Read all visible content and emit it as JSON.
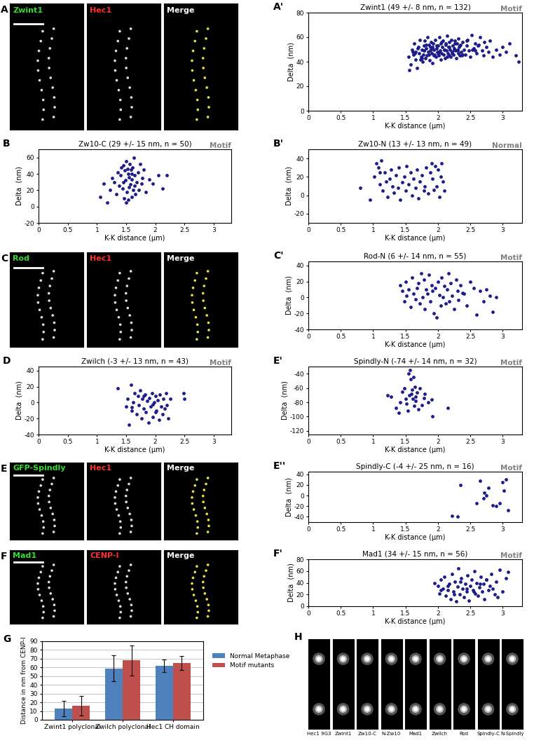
{
  "chart_data": [
    {
      "type": "scatter",
      "panel": "A'",
      "title": "Zwint1 (49 +/- 8 nm, n = 132)",
      "annotation": "Motif",
      "x_label": "K-K distance (µm)",
      "y_label": "Delta  (nm)",
      "color": "#1c1c8c",
      "marker": "o",
      "xlim": [
        0,
        3.3
      ],
      "xticks": [
        0,
        0.5,
        1,
        1.5,
        2,
        2.5,
        3
      ],
      "ylim": [
        0,
        80
      ],
      "yticks": [
        0,
        20,
        40,
        60,
        80
      ],
      "x": [
        1.55,
        1.58,
        1.6,
        1.62,
        1.63,
        1.65,
        1.66,
        1.68,
        1.7,
        1.71,
        1.72,
        1.74,
        1.75,
        1.76,
        1.77,
        1.78,
        1.79,
        1.8,
        1.81,
        1.82,
        1.83,
        1.84,
        1.85,
        1.86,
        1.87,
        1.88,
        1.89,
        1.9,
        1.91,
        1.92,
        1.93,
        1.94,
        1.95,
        1.96,
        1.97,
        1.98,
        1.99,
        2.0,
        2.01,
        2.02,
        2.03,
        2.04,
        2.05,
        2.06,
        2.07,
        2.08,
        2.09,
        2.1,
        2.11,
        2.12,
        2.13,
        2.14,
        2.15,
        2.16,
        2.17,
        2.18,
        2.19,
        2.2,
        2.21,
        2.22,
        2.23,
        2.24,
        2.25,
        2.26,
        2.27,
        2.28,
        2.29,
        2.3,
        2.31,
        2.32,
        2.33,
        2.34,
        2.35,
        2.36,
        2.38,
        2.4,
        2.42,
        2.44,
        2.46,
        2.48,
        2.5,
        2.52,
        2.55,
        2.58,
        2.6,
        2.62,
        2.65,
        2.68,
        2.7,
        2.72,
        2.75,
        2.78,
        2.8,
        2.85,
        2.9,
        2.95,
        3.0,
        3.05,
        3.1,
        3.2,
        3.25,
        1.56,
        1.64,
        1.69,
        1.73,
        1.78,
        1.82,
        1.86,
        1.9,
        1.94,
        1.98,
        2.02,
        2.06,
        2.1,
        2.14,
        2.18,
        2.22,
        2.26,
        2.3,
        2.34,
        2.38,
        2.45,
        2.53,
        2.63,
        1.61,
        1.75,
        1.88,
        2.0,
        2.12,
        2.25,
        2.37,
        2.57
      ],
      "values": [
        44,
        38,
        50,
        46,
        55,
        42,
        48,
        35,
        52,
        47,
        58,
        44,
        50,
        40,
        46,
        53,
        49,
        57,
        43,
        51,
        45,
        60,
        48,
        54,
        41,
        49,
        56,
        47,
        52,
        39,
        55,
        50,
        46,
        58,
        44,
        51,
        48,
        53,
        45,
        60,
        49,
        42,
        55,
        47,
        52,
        57,
        46,
        50,
        43,
        54,
        49,
        61,
        47,
        52,
        45,
        56,
        50,
        44,
        58,
        48,
        53,
        46,
        51,
        57,
        49,
        43,
        55,
        50,
        47,
        59,
        52,
        45,
        54,
        48,
        56,
        50,
        46,
        53,
        58,
        49,
        44,
        62,
        51,
        55,
        47,
        53,
        60,
        49,
        45,
        56,
        52,
        48,
        57,
        44,
        50,
        46,
        52,
        48,
        55,
        45,
        40,
        33,
        47,
        51,
        42,
        49,
        54,
        46,
        51,
        45,
        53,
        48,
        56,
        50,
        44,
        52,
        47,
        55,
        49,
        53,
        46,
        57,
        50,
        54,
        48,
        43,
        52,
        47,
        55,
        50,
        45,
        49
      ]
    },
    {
      "type": "scatter",
      "panel": "B",
      "title": "Zw10-C (29 +/- 15 nm, n = 50)",
      "annotation": "Motif",
      "x_label": "K-K distance (µm)",
      "y_label": "Delta  (nm)",
      "color": "#1c1c8c",
      "marker": "o",
      "xlim": [
        0,
        3.3
      ],
      "xticks": [
        0,
        0.5,
        1,
        1.5,
        2,
        2.5,
        3
      ],
      "ylim": [
        -20,
        70
      ],
      "yticks": [
        -20,
        0,
        20,
        40,
        60
      ],
      "x": [
        1.05,
        1.12,
        1.18,
        1.22,
        1.26,
        1.3,
        1.33,
        1.35,
        1.38,
        1.4,
        1.42,
        1.44,
        1.45,
        1.46,
        1.48,
        1.49,
        1.5,
        1.51,
        1.52,
        1.53,
        1.54,
        1.55,
        1.56,
        1.57,
        1.58,
        1.59,
        1.6,
        1.61,
        1.62,
        1.63,
        1.64,
        1.65,
        1.66,
        1.68,
        1.7,
        1.72,
        1.74,
        1.76,
        1.78,
        1.8,
        1.45,
        1.5,
        1.55,
        1.6,
        1.84,
        1.9,
        1.95,
        2.05,
        2.12,
        2.2
      ],
      "values": [
        12,
        28,
        5,
        20,
        35,
        30,
        15,
        42,
        25,
        38,
        48,
        22,
        50,
        10,
        44,
        32,
        55,
        18,
        46,
        40,
        8,
        36,
        52,
        27,
        45,
        12,
        33,
        48,
        20,
        60,
        38,
        25,
        15,
        30,
        42,
        20,
        52,
        28,
        35,
        45,
        30,
        5,
        24,
        40,
        18,
        33,
        28,
        38,
        22,
        38
      ]
    },
    {
      "type": "scatter",
      "panel": "B'",
      "title": "Zw10-N (13 +/- 13 nm, n = 49)",
      "annotation": "Normal",
      "x_label": "K-K distance (µm)",
      "y_label": "Delta  (nm)",
      "color": "#1c1c8c",
      "marker": "o",
      "xlim": [
        0,
        3.3
      ],
      "xticks": [
        0,
        0.5,
        1,
        1.5,
        2,
        2.5,
        3
      ],
      "ylim": [
        -30,
        50
      ],
      "yticks": [
        -20,
        0,
        20,
        40
      ],
      "x": [
        0.8,
        0.95,
        1.02,
        1.05,
        1.08,
        1.1,
        1.12,
        1.15,
        1.18,
        1.2,
        1.22,
        1.25,
        1.28,
        1.3,
        1.32,
        1.35,
        1.38,
        1.4,
        1.42,
        1.45,
        1.48,
        1.5,
        1.52,
        1.55,
        1.58,
        1.6,
        1.62,
        1.65,
        1.68,
        1.7,
        1.72,
        1.75,
        1.78,
        1.8,
        1.82,
        1.85,
        1.88,
        1.9,
        1.92,
        1.94,
        1.96,
        1.98,
        2.0,
        2.02,
        2.04,
        2.06,
        2.08,
        2.1,
        1.1
      ],
      "values": [
        8,
        -5,
        20,
        35,
        30,
        12,
        38,
        5,
        25,
        15,
        -2,
        18,
        28,
        10,
        3,
        22,
        8,
        30,
        -5,
        14,
        20,
        5,
        32,
        12,
        25,
        0,
        18,
        8,
        28,
        -3,
        15,
        22,
        5,
        10,
        30,
        2,
        25,
        35,
        18,
        6,
        32,
        10,
        28,
        -2,
        20,
        35,
        15,
        5,
        25
      ]
    },
    {
      "type": "scatter",
      "panel": "C'",
      "title": "Rod-N (6 +/- 14 nm, n = 55)",
      "annotation": "Motif",
      "x_label": "K-K distance (µm)",
      "y_label": "Delta  (nm)",
      "color": "#1c1c8c",
      "marker": "o",
      "xlim": [
        0,
        3.3
      ],
      "xticks": [
        0,
        0.5,
        1,
        1.5,
        2,
        2.5,
        3
      ],
      "ylim": [
        -40,
        45
      ],
      "yticks": [
        -40,
        -20,
        0,
        20,
        40
      ],
      "x": [
        1.42,
        1.45,
        1.48,
        1.5,
        1.52,
        1.55,
        1.58,
        1.6,
        1.62,
        1.65,
        1.68,
        1.7,
        1.72,
        1.74,
        1.76,
        1.78,
        1.8,
        1.82,
        1.84,
        1.86,
        1.88,
        1.9,
        1.92,
        1.94,
        1.96,
        1.98,
        2.0,
        2.02,
        2.04,
        2.06,
        2.08,
        2.1,
        2.12,
        2.14,
        2.16,
        2.18,
        2.2,
        2.22,
        2.25,
        2.28,
        2.3,
        2.32,
        2.35,
        2.38,
        2.4,
        2.45,
        2.5,
        2.55,
        2.6,
        2.65,
        2.7,
        2.75,
        2.8,
        2.85,
        2.9
      ],
      "values": [
        15,
        8,
        -5,
        20,
        2,
        10,
        -12,
        25,
        5,
        -2,
        12,
        18,
        -8,
        30,
        0,
        22,
        -15,
        10,
        5,
        28,
        -5,
        15,
        8,
        -20,
        12,
        -25,
        20,
        3,
        -10,
        25,
        0,
        14,
        -8,
        10,
        30,
        -5,
        18,
        2,
        -15,
        22,
        8,
        -3,
        15,
        6,
        5,
        -10,
        20,
        12,
        -22,
        8,
        -5,
        10,
        2,
        -18,
        0
      ]
    },
    {
      "type": "scatter",
      "panel": "D",
      "title": "Zwilch (-3 +/- 13 nm, n = 43)",
      "annotation": "Motif",
      "x_label": "K-K distance (µm)",
      "y_label": "Delta  (nm)",
      "color": "#1c1c8c",
      "marker": "o",
      "xlim": [
        0,
        3.3
      ],
      "xticks": [
        0,
        0.5,
        1,
        1.5,
        2,
        2.5,
        3
      ],
      "ylim": [
        -40,
        45
      ],
      "yticks": [
        -40,
        -20,
        0,
        20,
        40
      ],
      "x": [
        1.35,
        1.5,
        1.52,
        1.55,
        1.58,
        1.6,
        1.62,
        1.65,
        1.68,
        1.7,
        1.72,
        1.74,
        1.76,
        1.78,
        1.8,
        1.82,
        1.84,
        1.86,
        1.88,
        1.9,
        1.92,
        1.94,
        1.96,
        1.98,
        2.0,
        2.02,
        2.04,
        2.06,
        2.08,
        2.1,
        2.12,
        2.14,
        2.16,
        2.18,
        2.2,
        2.22,
        2.25,
        2.0,
        1.8,
        1.6,
        2.48,
        2.5,
        1.95
      ],
      "values": [
        18,
        -5,
        5,
        -28,
        22,
        -10,
        0,
        12,
        -15,
        8,
        -3,
        15,
        -20,
        5,
        -8,
        10,
        -12,
        2,
        -25,
        6,
        -5,
        12,
        -18,
        0,
        8,
        -10,
        3,
        -22,
        10,
        -5,
        -15,
        5,
        -8,
        12,
        -3,
        -20,
        5,
        -12,
        8,
        -6,
        12,
        5,
        -2
      ]
    },
    {
      "type": "scatter",
      "panel": "E'",
      "title": "Spindly-N (-74 +/- 14 nm, n = 32)",
      "annotation": "Motif",
      "x_label": "K-K distance (µm)",
      "y_label": "Delta  (nm)",
      "color": "#1c1c8c",
      "marker": "o",
      "xlim": [
        0,
        3.3
      ],
      "xticks": [
        0,
        0.5,
        1,
        1.5,
        2,
        2.5,
        3
      ],
      "ylim": [
        -125,
        -30
      ],
      "yticks": [
        -120,
        -100,
        -80,
        -60,
        -40
      ],
      "x": [
        1.22,
        1.28,
        1.35,
        1.4,
        1.42,
        1.45,
        1.48,
        1.5,
        1.52,
        1.54,
        1.55,
        1.56,
        1.57,
        1.58,
        1.59,
        1.6,
        1.61,
        1.62,
        1.63,
        1.64,
        1.65,
        1.66,
        1.68,
        1.7,
        1.72,
        1.75,
        1.78,
        1.8,
        1.85,
        1.9,
        1.92,
        2.15
      ],
      "values": [
        -70,
        -72,
        -88,
        -95,
        -80,
        -65,
        -60,
        -75,
        -82,
        -92,
        -40,
        -70,
        -35,
        -48,
        -68,
        -62,
        -75,
        -45,
        -85,
        -58,
        -72,
        -78,
        -66,
        -90,
        -60,
        -84,
        -74,
        -68,
        -80,
        -76,
        -100,
        -88
      ]
    },
    {
      "type": "scatter",
      "panel": "E''",
      "title": "Spindly-C (-4 +/- 25 nm, n = 16)",
      "annotation": "Motif",
      "x_label": "K-K distance (µm)",
      "y_label": "Delta  (nm)",
      "color": "#1c1c8c",
      "marker": "o",
      "xlim": [
        0,
        3.3
      ],
      "xticks": [
        0,
        0.5,
        1,
        1.5,
        2,
        2.5,
        3
      ],
      "ylim": [
        -50,
        45
      ],
      "yticks": [
        -40,
        -20,
        0,
        20,
        40
      ],
      "x": [
        2.22,
        2.3,
        2.35,
        2.6,
        2.65,
        2.7,
        2.72,
        2.75,
        2.78,
        2.85,
        2.9,
        2.95,
        3.0,
        3.02,
        3.05,
        3.08
      ],
      "values": [
        -38,
        -40,
        20,
        -15,
        28,
        -5,
        5,
        0,
        15,
        -18,
        -20,
        -15,
        25,
        10,
        30,
        -28
      ]
    },
    {
      "type": "scatter",
      "panel": "F'",
      "title": "Mad1 (34 +/- 15 nm, n = 56)",
      "annotation": "Motif",
      "x_label": "K-K distance (µm)",
      "y_label": "Delta  (nm)",
      "color": "#1c1c8c",
      "marker": "o",
      "xlim": [
        0,
        3.3
      ],
      "xticks": [
        0,
        0.5,
        1,
        1.5,
        2,
        2.5,
        3
      ],
      "ylim": [
        0,
        80
      ],
      "yticks": [
        0,
        20,
        40,
        60,
        80
      ],
      "x": [
        1.95,
        2.0,
        2.02,
        2.05,
        2.08,
        2.1,
        2.12,
        2.15,
        2.18,
        2.2,
        2.22,
        2.24,
        2.26,
        2.28,
        2.3,
        2.32,
        2.34,
        2.36,
        2.38,
        2.4,
        2.42,
        2.44,
        2.46,
        2.48,
        2.5,
        2.52,
        2.54,
        2.56,
        2.58,
        2.6,
        2.62,
        2.64,
        2.66,
        2.68,
        2.7,
        2.72,
        2.75,
        2.78,
        2.8,
        2.82,
        2.85,
        2.88,
        2.9,
        2.92,
        2.95,
        3.0,
        3.05,
        3.08,
        2.05,
        2.15,
        2.25,
        2.35,
        2.45,
        2.55,
        2.65,
        2.75
      ],
      "values": [
        40,
        35,
        22,
        45,
        30,
        50,
        18,
        28,
        38,
        12,
        55,
        25,
        42,
        8,
        33,
        65,
        20,
        48,
        30,
        15,
        38,
        25,
        52,
        10,
        35,
        45,
        28,
        60,
        22,
        40,
        18,
        32,
        50,
        25,
        38,
        12,
        45,
        28,
        35,
        55,
        30,
        20,
        42,
        15,
        62,
        25,
        48,
        58,
        28,
        35,
        20,
        42,
        30,
        25,
        38,
        45
      ]
    },
    {
      "type": "bar",
      "panel": "G",
      "categories": [
        "Zwint1 polyclonal",
        "Zwilch polyclonal",
        "Hec1 CH domain"
      ],
      "series": [
        {
          "name": "Normal Metaphase",
          "color": "#4f81bd",
          "values": [
            13,
            59,
            62
          ],
          "errors": [
            9,
            15,
            7
          ]
        },
        {
          "name": "Motif mutants",
          "color": "#c0504d",
          "values": [
            16,
            68,
            65
          ],
          "errors": [
            11,
            17,
            8
          ]
        }
      ],
      "y_label": "Distance in nm from CENP-I",
      "ylim": [
        0,
        90
      ],
      "yticks": [
        0,
        10,
        20,
        30,
        40,
        50,
        60,
        70,
        80,
        90
      ],
      "grid": true,
      "legend": "right"
    }
  ],
  "image_panels": [
    {
      "panel": "A",
      "channels": [
        {
          "name": "Zwint1",
          "color": "#33dd33"
        },
        {
          "name": "Hec1",
          "color": "#ff3030"
        },
        {
          "name": "Merge",
          "color": "#ffffff"
        }
      ]
    },
    {
      "panel": "C",
      "channels": [
        {
          "name": "Rod",
          "color": "#33dd33"
        },
        {
          "name": "Hec1",
          "color": "#ff3030"
        },
        {
          "name": "Merge",
          "color": "#ffffff"
        }
      ]
    },
    {
      "panel": "E",
      "channels": [
        {
          "name": "GFP-Spindly",
          "color": "#33dd33"
        },
        {
          "name": "Hec1",
          "color": "#ff3030"
        },
        {
          "name": "Merge",
          "color": "#ffffff"
        }
      ]
    },
    {
      "panel": "F",
      "channels": [
        {
          "name": "Mad1",
          "color": "#33dd33"
        },
        {
          "name": "CENP-I",
          "color": "#ff3030"
        },
        {
          "name": "Merge",
          "color": "#ffffff"
        }
      ]
    }
  ],
  "strip_panel": {
    "panel": "H",
    "labels": [
      "Hec1 9G3",
      "Zwint1",
      "Zw10-C",
      "N-Zw10",
      "Mad1",
      "Zwilch",
      "Rod",
      "Spindly-C",
      "N-Spindly"
    ]
  }
}
